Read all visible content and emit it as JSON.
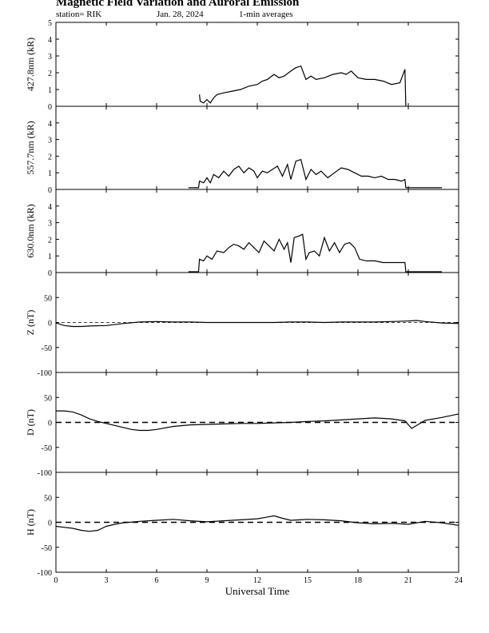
{
  "header": {
    "title": "Magnetic Field Variation and Auroral Emission",
    "station": "station= RIK",
    "date": "Jan. 28, 2024",
    "averaging": "1-min averages"
  },
  "chart_data": [
    {
      "type": "line",
      "ylabel": "427.8nm (kR)",
      "ylim": [
        0,
        5
      ],
      "yticks": [
        0,
        1,
        2,
        3,
        4,
        5
      ],
      "x": [
        8.55,
        8.6,
        8.8,
        9.0,
        9.2,
        9.4,
        9.6,
        10.0,
        10.5,
        11.0,
        11.5,
        12.0,
        12.3,
        12.6,
        13.0,
        13.3,
        13.6,
        14.0,
        14.3,
        14.6,
        14.9,
        15.2,
        15.5,
        16.0,
        16.5,
        17.0,
        17.3,
        17.6,
        18.0,
        18.5,
        19.0,
        19.5,
        20.0,
        20.5,
        20.8,
        20.85
      ],
      "series": [
        {
          "values": [
            0.7,
            0.3,
            0.2,
            0.4,
            0.2,
            0.5,
            0.7,
            0.8,
            0.9,
            1.0,
            1.2,
            1.3,
            1.5,
            1.6,
            1.9,
            1.7,
            1.8,
            2.1,
            2.3,
            2.4,
            1.6,
            1.8,
            1.6,
            1.7,
            1.9,
            2.0,
            1.9,
            2.1,
            1.7,
            1.6,
            1.6,
            1.5,
            1.3,
            1.4,
            2.2,
            0.0
          ]
        }
      ]
    },
    {
      "type": "line",
      "ylabel": "557.7nm (kR)",
      "ylim": [
        0,
        5
      ],
      "yticks": [
        0,
        1,
        2,
        3,
        4
      ],
      "x": [
        7.9,
        8.5,
        8.55,
        8.8,
        9.0,
        9.2,
        9.4,
        9.7,
        10.0,
        10.3,
        10.6,
        10.9,
        11.2,
        11.5,
        11.8,
        12.0,
        12.3,
        12.6,
        12.9,
        13.2,
        13.5,
        13.8,
        14.0,
        14.3,
        14.6,
        14.9,
        15.2,
        15.5,
        15.8,
        16.2,
        16.6,
        17.0,
        17.4,
        17.8,
        18.2,
        18.6,
        19.0,
        19.4,
        19.8,
        20.2,
        20.6,
        20.8,
        20.85,
        23.0
      ],
      "series": [
        {
          "values": [
            0.1,
            0.1,
            0.5,
            0.4,
            0.7,
            0.4,
            0.9,
            0.7,
            1.1,
            0.8,
            1.2,
            1.4,
            1.0,
            1.3,
            1.1,
            0.7,
            1.1,
            1.0,
            1.2,
            1.4,
            0.8,
            1.5,
            0.6,
            1.7,
            1.8,
            0.6,
            1.2,
            0.9,
            1.1,
            0.7,
            1.0,
            1.3,
            1.2,
            1.0,
            0.8,
            0.8,
            0.7,
            0.8,
            0.6,
            0.6,
            0.5,
            0.6,
            0.1,
            0.1
          ]
        }
      ]
    },
    {
      "type": "line",
      "ylabel": "630.0nm (kR)",
      "ylim": [
        0,
        5
      ],
      "yticks": [
        0,
        1,
        2,
        3,
        4
      ],
      "x": [
        7.9,
        8.5,
        8.55,
        8.8,
        9.0,
        9.3,
        9.6,
        10.0,
        10.3,
        10.6,
        10.9,
        11.2,
        11.5,
        11.8,
        12.1,
        12.4,
        12.7,
        13.0,
        13.3,
        13.6,
        13.8,
        14.0,
        14.2,
        14.5,
        14.7,
        14.9,
        15.1,
        15.4,
        15.7,
        16.0,
        16.3,
        16.6,
        16.9,
        17.2,
        17.5,
        17.8,
        18.1,
        18.5,
        19.0,
        19.5,
        20.0,
        20.5,
        20.8,
        20.85,
        23.0
      ],
      "series": [
        {
          "values": [
            0.05,
            0.05,
            0.8,
            0.7,
            1.0,
            0.8,
            1.3,
            1.2,
            1.5,
            1.7,
            1.6,
            1.4,
            1.8,
            1.5,
            1.2,
            1.9,
            1.6,
            1.3,
            2.0,
            1.4,
            1.8,
            0.6,
            2.1,
            2.2,
            2.3,
            0.8,
            1.2,
            1.3,
            1.0,
            2.1,
            1.3,
            1.8,
            1.2,
            1.7,
            1.8,
            1.5,
            0.8,
            0.7,
            0.7,
            0.6,
            0.6,
            0.6,
            0.6,
            0.05,
            0.05
          ]
        }
      ]
    },
    {
      "type": "line",
      "ylabel": "Z (nT)",
      "ylim": [
        -100,
        100
      ],
      "yticks": [
        -100,
        -50,
        0,
        50
      ],
      "x": [
        0,
        0.5,
        1,
        1.5,
        2,
        3,
        4,
        5,
        6,
        7,
        8,
        9,
        10,
        11,
        12,
        13,
        14,
        15,
        16,
        17,
        18,
        19,
        20,
        21,
        21.5,
        22,
        23,
        24
      ],
      "series": [
        {
          "values": [
            -1,
            -6,
            -8,
            -8,
            -7,
            -6,
            -2,
            1,
            2,
            1,
            1,
            0,
            0,
            0,
            0,
            0,
            1,
            1,
            0,
            1,
            1,
            1,
            2,
            3,
            4,
            2,
            -1,
            -2
          ]
        }
      ]
    },
    {
      "type": "line",
      "ylabel": "D (nT)",
      "ylim": [
        -100,
        100
      ],
      "yticks": [
        -100,
        -50,
        0,
        50
      ],
      "x": [
        0,
        0.5,
        1,
        1.5,
        2,
        2.5,
        3,
        3.5,
        4,
        4.5,
        5,
        5.5,
        6,
        7,
        8,
        9,
        10,
        11,
        12,
        13,
        14,
        15,
        16,
        17,
        18,
        19,
        20,
        20.8,
        21.2,
        21.6,
        22,
        23,
        24
      ],
      "series": [
        {
          "values": [
            23,
            23,
            21,
            15,
            7,
            2,
            -2,
            -6,
            -10,
            -14,
            -16,
            -16,
            -14,
            -8,
            -5,
            -4,
            -3,
            -2,
            -2,
            -1,
            0,
            2,
            3,
            5,
            7,
            9,
            7,
            3,
            -12,
            -4,
            4,
            10,
            17
          ]
        }
      ]
    },
    {
      "type": "line",
      "ylabel": "H (nT)",
      "ylim": [
        -100,
        100
      ],
      "yticks": [
        -100,
        -50,
        0,
        50
      ],
      "x": [
        0,
        0.5,
        1,
        1.5,
        2,
        2.5,
        3,
        3.5,
        4,
        5,
        6,
        7,
        8,
        9,
        10,
        11,
        12,
        12.5,
        13,
        13.5,
        14,
        15,
        16,
        17,
        18,
        19,
        20,
        21,
        22,
        23,
        24
      ],
      "series": [
        {
          "values": [
            -8,
            -10,
            -12,
            -16,
            -18,
            -16,
            -8,
            -4,
            -1,
            2,
            4,
            6,
            3,
            1,
            3,
            5,
            7,
            10,
            13,
            8,
            4,
            6,
            5,
            3,
            -1,
            -3,
            -2,
            -4,
            2,
            -1,
            -6
          ]
        }
      ]
    }
  ],
  "x_axis": {
    "label": "Universal Time",
    "ticks": [
      0,
      3,
      6,
      9,
      12,
      15,
      18,
      21,
      24
    ],
    "range": [
      0,
      24
    ]
  }
}
